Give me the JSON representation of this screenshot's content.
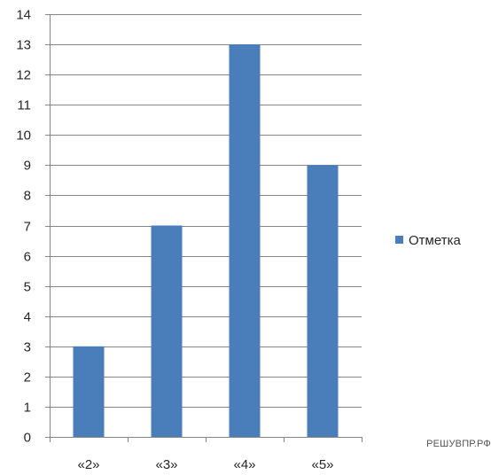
{
  "chart_data": {
    "type": "bar",
    "title": "",
    "xlabel": "",
    "ylabel": "",
    "categories": [
      "«2»",
      "«3»",
      "«4»",
      "«5»"
    ],
    "series": [
      {
        "name": "Отметка",
        "values": [
          3,
          7,
          13,
          9
        ],
        "color": "#4a7ebb"
      }
    ],
    "ylim": [
      0,
      14
    ],
    "yticks": [
      0,
      1,
      2,
      3,
      4,
      5,
      6,
      7,
      8,
      9,
      10,
      11,
      12,
      13,
      14
    ],
    "grid": true,
    "legend_position": "right"
  },
  "watermark": "РЕШУВПР.РФ"
}
